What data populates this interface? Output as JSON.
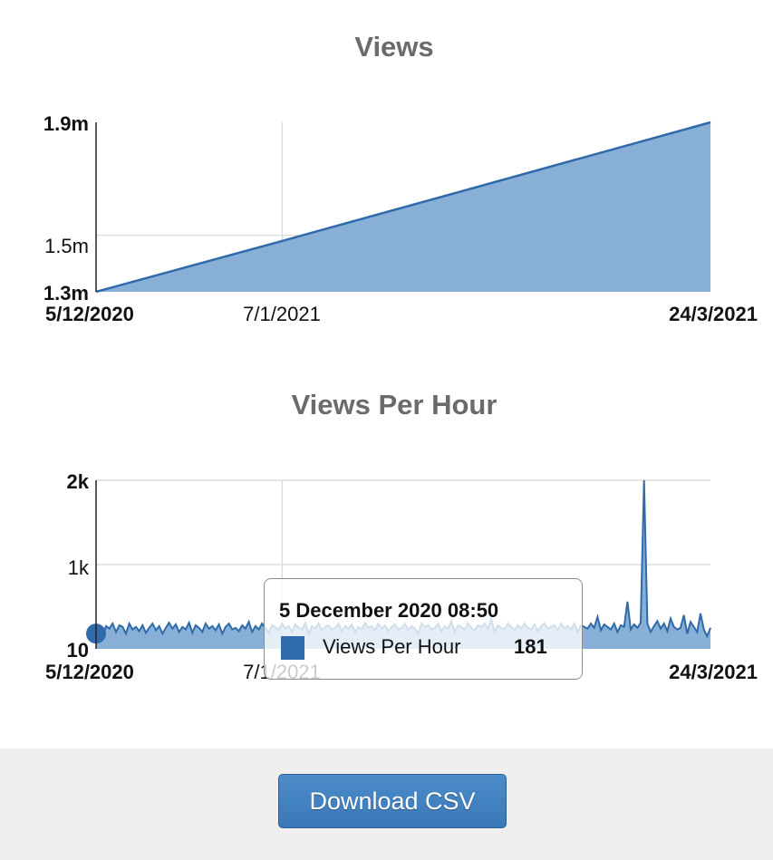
{
  "chart_data": [
    {
      "type": "area",
      "title": "Views",
      "xlabel": "",
      "ylabel": "",
      "x_ticks": [
        "5/12/2020",
        "7/1/2021",
        "24/3/2021"
      ],
      "y_ticks": [
        "1.3m",
        "1.5m",
        "1.9m"
      ],
      "ylim": [
        1300000,
        1900000
      ],
      "grid": true,
      "series": [
        {
          "x": [
            "5/12/2020",
            "7/1/2021",
            "24/3/2021"
          ],
          "y": [
            1300000,
            1480000,
            1900000
          ]
        }
      ]
    },
    {
      "type": "area",
      "title": "Views Per Hour",
      "xlabel": "",
      "ylabel": "",
      "x_ticks": [
        "5/12/2020",
        "7/1/2021",
        "24/3/2021"
      ],
      "y_ticks": [
        "10",
        "1k",
        "2k"
      ],
      "ylim": [
        0,
        2000
      ],
      "grid": true,
      "series": [
        {
          "name": "Views Per Hour",
          "y": [
            181,
            230,
            150,
            270,
            240,
            300,
            200,
            280,
            260,
            180,
            300,
            230,
            260,
            210,
            280,
            190,
            250,
            300,
            220,
            270,
            180,
            250,
            310,
            240,
            290,
            200,
            260,
            230,
            310,
            190,
            280,
            250,
            200,
            300,
            240,
            270,
            220,
            290,
            180,
            260,
            300,
            230,
            250,
            210,
            280,
            240,
            320,
            200,
            270,
            230,
            300,
            250,
            190,
            280,
            260,
            220,
            300,
            240,
            270,
            200,
            290,
            250,
            230,
            310,
            180,
            270,
            240,
            300,
            220,
            260,
            280,
            230,
            250,
            300,
            210,
            270,
            240,
            290,
            200,
            260,
            230,
            310,
            250,
            270,
            220,
            300,
            240,
            280,
            210,
            260,
            290,
            230,
            250,
            300,
            220,
            270,
            240,
            180,
            300,
            260,
            280,
            230,
            250,
            300,
            210,
            270,
            240,
            330,
            200,
            280,
            260,
            230,
            300,
            250,
            220,
            280,
            260,
            300,
            240,
            350,
            200,
            280,
            250,
            230,
            300,
            260,
            220,
            280,
            240,
            300,
            250,
            230,
            290,
            210,
            270,
            300,
            240,
            260,
            280,
            220,
            300,
            250,
            270,
            230,
            300,
            200,
            280,
            260,
            240,
            300,
            250,
            380,
            220,
            290,
            260,
            230,
            300,
            200,
            280,
            260,
            560,
            230,
            290,
            250,
            310,
            2000,
            300,
            200,
            270,
            330,
            240,
            300,
            210,
            360,
            260,
            230,
            250,
            400,
            180,
            320,
            260,
            200,
            420,
            230,
            150,
            250
          ]
        }
      ],
      "tooltip": {
        "date": "5 December 2020 08:50",
        "series": "Views Per Hour",
        "value": "181"
      }
    }
  ],
  "footer": {
    "download_label": "Download CSV"
  },
  "colors": {
    "line": "#2f6aaa",
    "fill": "#88b0d6",
    "grid": "#d8d8d8",
    "title": "#6b6b6b"
  }
}
